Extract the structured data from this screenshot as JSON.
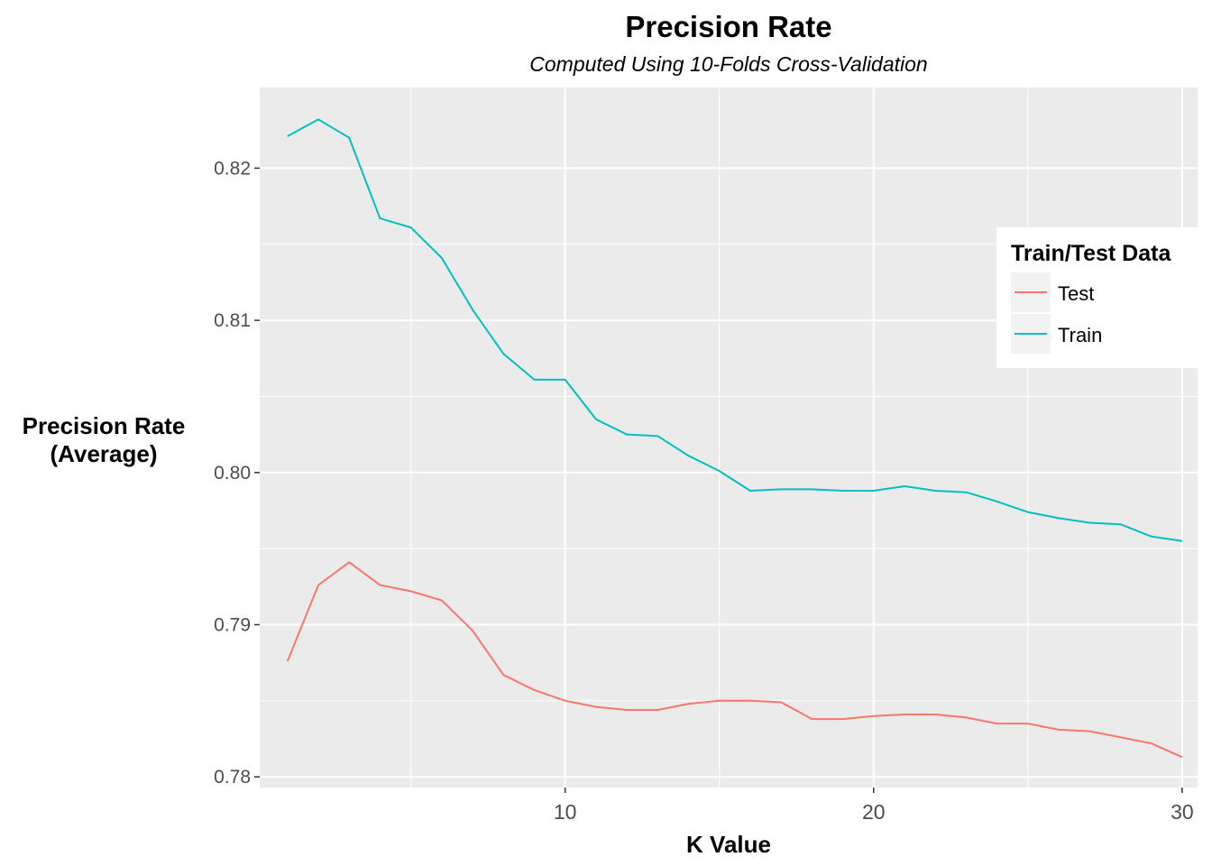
{
  "chart_data": {
    "type": "line",
    "title": "Precision Rate",
    "subtitle": "Computed Using 10-Folds Cross-Validation",
    "xlabel": "K Value",
    "ylabel_lines": [
      "Precision Rate",
      "(Average)"
    ],
    "xlim": [
      0.1,
      30.5
    ],
    "ylim": [
      0.7793,
      0.8253
    ],
    "x_ticks": [
      10,
      20,
      30
    ],
    "y_ticks": [
      0.78,
      0.79,
      0.8,
      0.81,
      0.82
    ],
    "y_tick_labels": [
      "0.78",
      "0.79",
      "0.80",
      "0.81",
      "0.82"
    ],
    "grid": true,
    "legend": {
      "title": "Train/Test Data",
      "placement": "right"
    },
    "x": [
      1,
      2,
      3,
      4,
      5,
      6,
      7,
      8,
      9,
      10,
      11,
      12,
      13,
      14,
      15,
      16,
      17,
      18,
      19,
      20,
      21,
      22,
      23,
      24,
      25,
      26,
      27,
      28,
      29,
      30
    ],
    "series": [
      {
        "name": "Test",
        "color": "#F8766D",
        "values": [
          0.7876,
          0.7926,
          0.7941,
          0.7926,
          0.7922,
          0.7916,
          0.7896,
          0.7867,
          0.7857,
          0.785,
          0.7846,
          0.7844,
          0.7844,
          0.7848,
          0.785,
          0.785,
          0.7849,
          0.7838,
          0.7838,
          0.784,
          0.7841,
          0.7841,
          0.7839,
          0.7835,
          0.7835,
          0.7831,
          0.783,
          0.7826,
          0.7822,
          0.7813
        ]
      },
      {
        "name": "Train",
        "color": "#00BFC4",
        "values": [
          0.8221,
          0.8232,
          0.822,
          0.8167,
          0.8161,
          0.8141,
          0.8107,
          0.8078,
          0.8061,
          0.8061,
          0.8035,
          0.8025,
          0.8024,
          0.8011,
          0.8001,
          0.7988,
          0.7989,
          0.7989,
          0.7988,
          0.7988,
          0.7991,
          0.7988,
          0.7987,
          0.7981,
          0.7974,
          0.797,
          0.7967,
          0.7966,
          0.7958,
          0.7955
        ]
      }
    ]
  }
}
